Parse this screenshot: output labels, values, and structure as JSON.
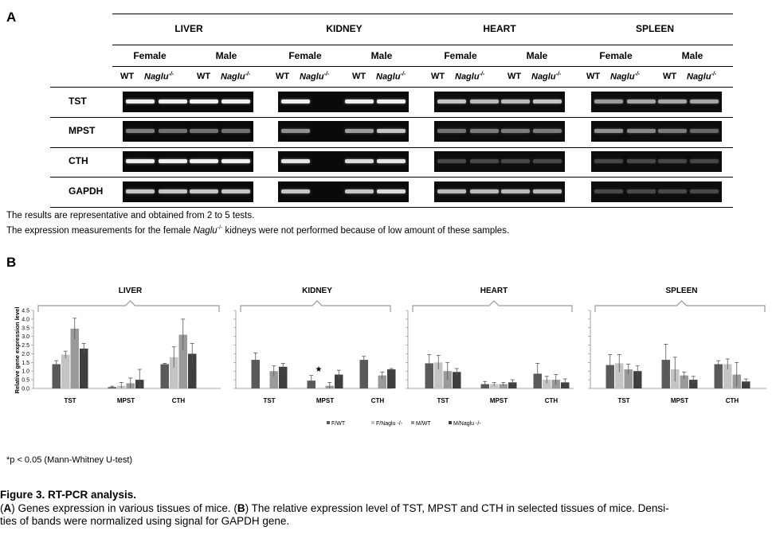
{
  "panel_a": {
    "letter": "A",
    "tissues": [
      "LIVER",
      "KIDNEY",
      "HEART",
      "SPLEEN"
    ],
    "sexes": [
      "Female",
      "Male"
    ],
    "genotypes": {
      "wt": "WT",
      "ko": "Naglu",
      "ko_sup": "-/-"
    },
    "genes": [
      "TST",
      "MPST",
      "CTH",
      "GAPDH"
    ],
    "note1": "The results are representative and obtained from 2 to 5 tests.",
    "note2_pre": "The expression measurements for the female ",
    "note2_gene": "Naglu",
    "note2_sup": "-/-",
    "note2_post": " kidneys were not performed because of low amount of these samples.",
    "gels": [
      {
        "bg": "#0a0a0a",
        "lanes": [
          [
            0.95,
            0.95,
            0.95,
            0.95
          ],
          [
            0.4,
            0.35,
            0.35,
            0.35
          ],
          [
            0.95,
            0.95,
            0.95,
            0.95
          ],
          [
            0.75,
            0.75,
            0.75,
            0.75
          ]
        ]
      },
      {
        "bg": "#0a0a0a",
        "lanes": [
          [
            0.95,
            0,
            0.95,
            0.95
          ],
          [
            0.5,
            0,
            0.55,
            0.75
          ],
          [
            0.9,
            0,
            0.85,
            0.9
          ],
          [
            0.75,
            0,
            0.75,
            0.85
          ]
        ]
      },
      {
        "bg": "#0d0d0d",
        "lanes": [
          [
            0.75,
            0.7,
            0.7,
            0.75
          ],
          [
            0.35,
            0.4,
            0.4,
            0.4
          ],
          [
            0.15,
            0.15,
            0.15,
            0.15
          ],
          [
            0.7,
            0.7,
            0.7,
            0.7
          ]
        ]
      },
      {
        "bg": "#0d0d0d",
        "lanes": [
          [
            0.55,
            0.6,
            0.6,
            0.6
          ],
          [
            0.5,
            0.45,
            0.4,
            0.3
          ],
          [
            0.15,
            0.15,
            0.15,
            0.15
          ],
          [
            0.15,
            0.15,
            0.15,
            0.15
          ]
        ]
      }
    ]
  },
  "panel_b": {
    "letter": "B"
  },
  "chart_data": {
    "type": "bar",
    "ylabel": "Relative gene expression level",
    "ylim": [
      0,
      4.5
    ],
    "yticks": [
      "0.0",
      "0.5",
      "1.0",
      "1.5",
      "2.0",
      "2.5",
      "3.0",
      "3.5",
      "4.0",
      "4.5"
    ],
    "groups": [
      {
        "tissue": "LIVER",
        "categories": [
          {
            "gene": "TST",
            "values": [
              1.4,
              1.95,
              3.45,
              2.3
            ],
            "errors": [
              0.2,
              0.2,
              0.6,
              0.3
            ]
          },
          {
            "gene": "MPST",
            "values": [
              0.08,
              0.15,
              0.3,
              0.5
            ],
            "errors": [
              0.05,
              0.2,
              0.3,
              0.6
            ]
          },
          {
            "gene": "CTH",
            "values": [
              1.4,
              1.8,
              3.1,
              2.0
            ],
            "errors": [
              0.05,
              0.6,
              0.9,
              0.6
            ]
          }
        ]
      },
      {
        "tissue": "KIDNEY",
        "categories": [
          {
            "gene": "TST",
            "values": [
              1.65,
              null,
              1.0,
              1.25
            ],
            "errors": [
              0.4,
              0,
              0.3,
              0.2
            ]
          },
          {
            "gene": "MPST",
            "values": [
              0.45,
              null,
              0.15,
              0.8
            ],
            "errors": [
              0.3,
              0,
              0.2,
              0.25
            ]
          },
          {
            "gene": "CTH",
            "values": [
              1.65,
              null,
              0.75,
              1.1
            ],
            "errors": [
              0.2,
              0,
              0.2,
              0.05
            ]
          }
        ]
      },
      {
        "tissue": "HEART",
        "categories": [
          {
            "gene": "TST",
            "values": [
              1.45,
              1.5,
              1.0,
              0.95
            ],
            "errors": [
              0.5,
              0.4,
              0.5,
              0.2
            ]
          },
          {
            "gene": "MPST",
            "values": [
              0.25,
              0.25,
              0.25,
              0.35
            ],
            "errors": [
              0.15,
              0.1,
              0.1,
              0.15
            ]
          },
          {
            "gene": "CTH",
            "values": [
              0.85,
              0.5,
              0.5,
              0.35
            ],
            "errors": [
              0.6,
              0.2,
              0.3,
              0.2
            ]
          }
        ]
      },
      {
        "tissue": "SPLEEN",
        "categories": [
          {
            "gene": "TST",
            "values": [
              1.35,
              1.45,
              1.1,
              1.0
            ],
            "errors": [
              0.6,
              0.5,
              0.3,
              0.3
            ]
          },
          {
            "gene": "MPST",
            "values": [
              1.65,
              1.1,
              0.75,
              0.5
            ],
            "errors": [
              0.9,
              0.7,
              0.2,
              0.2
            ]
          },
          {
            "gene": "CTH",
            "values": [
              1.4,
              1.4,
              0.8,
              0.4
            ],
            "errors": [
              0.2,
              0.3,
              0.7,
              0.15
            ]
          }
        ]
      }
    ],
    "series": [
      {
        "name": "F/WT",
        "color": "#5a5a5a"
      },
      {
        "name": "F/Naglu -/-",
        "color": "#c4c4c4"
      },
      {
        "name": "M/WT",
        "color": "#9a9a9a"
      },
      {
        "name": "M/Naglu -/-",
        "color": "#3f3f3f"
      }
    ],
    "significance_marker": "★",
    "footnote": "*p < 0.05 (Mann-Whitney U-test)"
  },
  "caption": {
    "title": "Figure 3. RT-PCR analysis.",
    "p1": "(",
    "a": "A",
    "p2": ") Genes expression in various tissues of mice. (",
    "b": "B",
    "p3": ") The relative expression level of TST, MPST and CTH in selected tissues of mice. Densi-",
    "line2": "ties of bands were normalized using signal for GAPDH gene."
  }
}
